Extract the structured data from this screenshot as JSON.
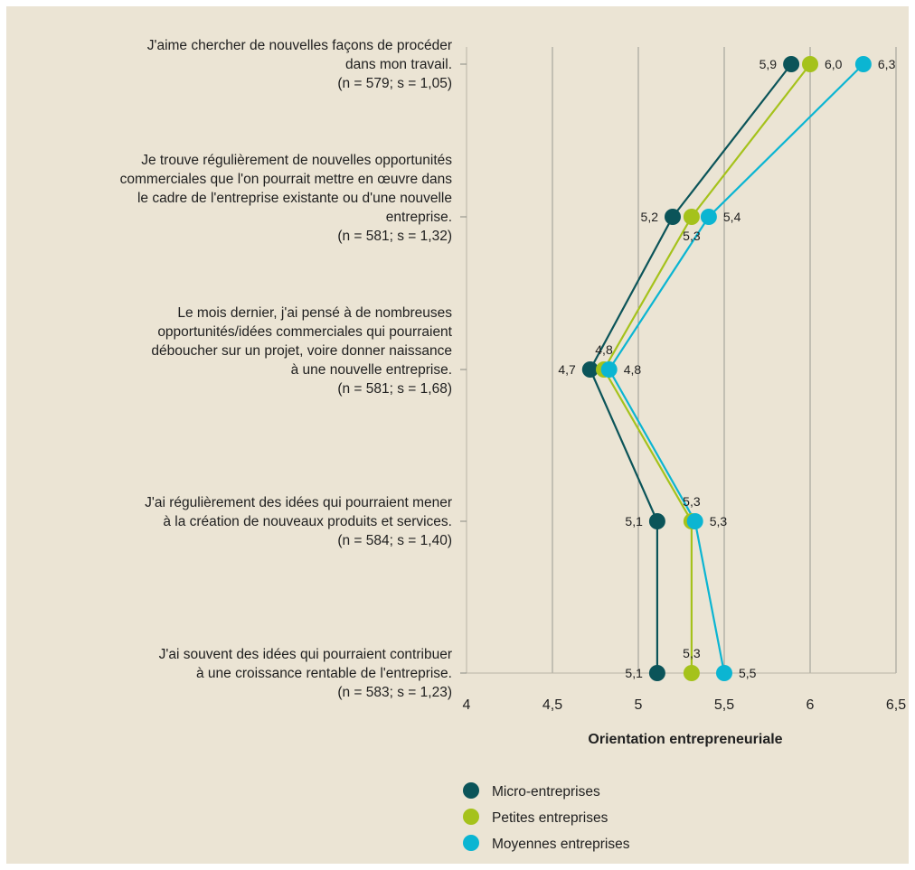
{
  "chart_data": {
    "type": "line",
    "orientation": "horizontal",
    "xlabel": "Orientation entrepreneuriale",
    "xlim": [
      4,
      6.5
    ],
    "x_ticks": [
      "4",
      "4,5",
      "5",
      "5,5",
      "6",
      "6,5"
    ],
    "grid": true,
    "legend_position": "bottom-left",
    "categories": [
      [
        "J'aime chercher de nouvelles façons de procéder",
        "dans mon travail.",
        "(n = 579; s = 1,05)"
      ],
      [
        "Je trouve régulièrement de nouvelles opportunités",
        "commerciales que l'on pourrait mettre en œuvre dans",
        "le cadre de l'entreprise existante ou d'une nouvelle",
        "entreprise.",
        "(n = 581; s = 1,32)"
      ],
      [
        "Le mois dernier, j'ai pensé à de nombreuses",
        "opportunités/idées commerciales qui pourraient",
        "déboucher sur un projet, voire donner naissance",
        "à une nouvelle entreprise.",
        "(n = 581; s = 1,68)"
      ],
      [
        "J'ai régulièrement des idées qui pourraient mener",
        "à la création de nouveaux produits et services.",
        "(n = 584; s = 1,40)"
      ],
      [
        "J'ai souvent des idées qui pourraient contribuer",
        "à une croissance rentable de l'entreprise.",
        "(n = 583; s = 1,23)"
      ]
    ],
    "series": [
      {
        "name": "Micro-entreprises",
        "color": "#0b5459",
        "values": [
          5.89,
          5.2,
          4.72,
          5.11,
          5.11
        ],
        "labels": [
          "5,9",
          "5,2",
          "4,7",
          "5,1",
          "5,1"
        ]
      },
      {
        "name": "Petites entreprises",
        "color": "#a5c21b",
        "values": [
          6.0,
          5.31,
          4.8,
          5.31,
          5.31
        ],
        "labels": [
          "6,0",
          "5,3",
          "4,8",
          "5,3",
          "5,3"
        ]
      },
      {
        "name": "Moyennes entreprises",
        "color": "#0bb5d2",
        "values": [
          6.31,
          5.41,
          4.83,
          5.33,
          5.5
        ],
        "labels": [
          "6,3",
          "5,4",
          "4,8",
          "5,3",
          "5,5"
        ]
      }
    ]
  }
}
